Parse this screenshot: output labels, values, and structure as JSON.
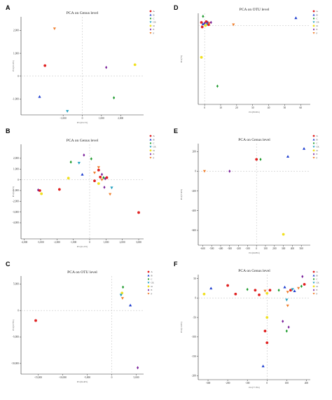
{
  "colors": {
    "red": "#e02020",
    "blue": "#1f3fd0",
    "green": "#1a9a2a",
    "purple": "#7a1f9a",
    "yellow": "#f0e020",
    "orange": "#f08030",
    "cyan": "#20a0c0",
    "grid": "#bdbdbd",
    "axis": "#333333"
  },
  "panels": [
    {
      "letter": "A",
      "title": "PCA on Genus level",
      "xlabel": "PC1(43.15%)",
      "ylabel": "PC2(25.19%)",
      "legend": [
        {
          "label": "A",
          "color": "#e02020",
          "shape": "circle"
        },
        {
          "label": "B",
          "color": "#1f3fd0",
          "shape": "triangle-up"
        },
        {
          "label": "C",
          "color": "#1a9a2a",
          "shape": "diamond"
        },
        {
          "label": "CK",
          "color": "#20a0c0",
          "shape": "triangle-down"
        },
        {
          "label": "D",
          "color": "#f0e020",
          "shape": "circle"
        },
        {
          "label": "E",
          "color": "#7a1f9a",
          "shape": "diamond"
        },
        {
          "label": "F",
          "color": "#f08030",
          "shape": "triangle-down"
        }
      ]
    },
    {
      "letter": "B",
      "title": "PCA on Genus level",
      "xlabel": "PC1(41.22%)",
      "ylabel": "PC2(22.10%)",
      "legend": [
        {
          "label": "A",
          "color": "#e02020",
          "shape": "circle"
        },
        {
          "label": "B",
          "color": "#1f3fd0",
          "shape": "triangle-up"
        },
        {
          "label": "C",
          "color": "#1a9a2a",
          "shape": "diamond"
        },
        {
          "label": "CK",
          "color": "#20a0c0",
          "shape": "triangle-down"
        },
        {
          "label": "D",
          "color": "#f0e020",
          "shape": "circle"
        },
        {
          "label": "E",
          "color": "#7a1f9a",
          "shape": "diamond"
        },
        {
          "label": "F",
          "color": "#f08030",
          "shape": "triangle-down"
        }
      ]
    },
    {
      "letter": "C",
      "title": "PCA on OTU level",
      "xlabel": "PC1(64.46%)",
      "ylabel": "PC2(18.78%)",
      "legend": [
        {
          "label": "A",
          "color": "#e02020",
          "shape": "circle"
        },
        {
          "label": "B",
          "color": "#1f3fd0",
          "shape": "triangle-up"
        },
        {
          "label": "C",
          "color": "#1a9a2a",
          "shape": "diamond"
        },
        {
          "label": "CK",
          "color": "#20a0c0",
          "shape": "triangle-down"
        },
        {
          "label": "D",
          "color": "#f0e020",
          "shape": "circle"
        },
        {
          "label": "E",
          "color": "#7a1f9a",
          "shape": "diamond"
        },
        {
          "label": "F",
          "color": "#f08030",
          "shape": "triangle-down"
        }
      ]
    },
    {
      "letter": "D",
      "title": "PCA on OTU level",
      "xlabel": "PC1(85.96%)",
      "ylabel": "PC2(7%)",
      "legend": [
        {
          "label": "A",
          "color": "#e02020",
          "shape": "circle"
        },
        {
          "label": "B",
          "color": "#1f3fd0",
          "shape": "triangle-up"
        },
        {
          "label": "C",
          "color": "#1a9a2a",
          "shape": "diamond"
        },
        {
          "label": "CK",
          "color": "#20a0c0",
          "shape": "triangle-down"
        },
        {
          "label": "D",
          "color": "#f0e020",
          "shape": "circle"
        },
        {
          "label": "E",
          "color": "#7a1f9a",
          "shape": "diamond"
        },
        {
          "label": "F",
          "color": "#f08030",
          "shape": "triangle-down"
        }
      ]
    },
    {
      "letter": "E",
      "title": "PCA on Genus level",
      "xlabel": "PC1(62.86%)",
      "ylabel": "PC2(27.40%)",
      "legend": [
        {
          "label": "A",
          "color": "#e02020",
          "shape": "circle"
        },
        {
          "label": "B",
          "color": "#1f3fd0",
          "shape": "triangle-up"
        },
        {
          "label": "C",
          "color": "#1a9a2a",
          "shape": "diamond"
        },
        {
          "label": "CK",
          "color": "#20a0c0",
          "shape": "triangle-down"
        },
        {
          "label": "D",
          "color": "#f0e020",
          "shape": "circle"
        },
        {
          "label": "E",
          "color": "#7a1f9a",
          "shape": "diamond"
        },
        {
          "label": "F",
          "color": "#f08030",
          "shape": "triangle-down"
        }
      ]
    },
    {
      "letter": "F",
      "title": "PCA on Genus level",
      "xlabel": "PC1(77.78%)",
      "ylabel": "PC2(11.59%)",
      "legend": [
        {
          "label": "A",
          "color": "#e02020",
          "shape": "circle"
        },
        {
          "label": "B",
          "color": "#1f3fd0",
          "shape": "triangle-up"
        },
        {
          "label": "C",
          "color": "#1a9a2a",
          "shape": "diamond"
        },
        {
          "label": "CK",
          "color": "#20a0c0",
          "shape": "triangle-down"
        },
        {
          "label": "D",
          "color": "#f0e020",
          "shape": "circle"
        },
        {
          "label": "E",
          "color": "#7a1f9a",
          "shape": "diamond"
        },
        {
          "label": "F",
          "color": "#f08030",
          "shape": "triangle-down"
        }
      ]
    }
  ],
  "chart_data": [
    {
      "panel": "A",
      "type": "scatter",
      "title": "PCA on Genus level",
      "xlabel": "PC1(43.15%)",
      "ylabel": "PC2(25.19%)",
      "xlim": [
        -3200,
        3200
      ],
      "ylim": [
        -1700,
        2600
      ],
      "xticks": [
        -1000,
        0,
        1000,
        2000
      ],
      "xticklabels": [
        "-1,000",
        "0",
        "1,000",
        "2,000"
      ],
      "yticks": [
        -1000,
        0,
        1000,
        2000
      ],
      "yticklabels": [
        "-1,000",
        "0",
        "1,000",
        "2,000"
      ],
      "grid": "dashed zero lines",
      "legend_position": "right",
      "points": [
        {
          "group": "A",
          "x": -1950,
          "y": 460
        },
        {
          "group": "B",
          "x": -2230,
          "y": -900
        },
        {
          "group": "CK",
          "x": -780,
          "y": -1540
        },
        {
          "group": "F",
          "x": -1450,
          "y": 2080
        },
        {
          "group": "C",
          "x": 1650,
          "y": -950
        },
        {
          "group": "E",
          "x": 1250,
          "y": 380
        },
        {
          "group": "D",
          "x": 2750,
          "y": 500
        }
      ]
    },
    {
      "panel": "B",
      "type": "scatter",
      "title": "PCA on Genus level",
      "xlabel": "PC1(41.22%)",
      "ylabel": "PC2(22.10%)",
      "xlim": [
        -4200,
        3300
      ],
      "ylim": [
        -5500,
        3300
      ],
      "xticks": [
        -4000,
        -3000,
        -2000,
        -1000,
        0,
        1000,
        2000,
        3000
      ],
      "xticklabels": [
        "-4,000",
        "-3,000",
        "-2,000",
        "-1,000",
        "0",
        "1,000",
        "2,000",
        "3,000"
      ],
      "yticks": [
        -4000,
        -3000,
        -2000,
        -1000,
        0,
        1000,
        2000
      ],
      "yticklabels": [
        "-4,000",
        "-3,000",
        "-2,000",
        "-1,000",
        "0",
        "1,000",
        "2,000"
      ],
      "grid": "dashed zero lines",
      "legend_position": "right",
      "points": [
        {
          "group": "E",
          "x": -350,
          "y": 2300
        },
        {
          "group": "C",
          "x": 100,
          "y": 1950
        },
        {
          "group": "C",
          "x": -1150,
          "y": 1650
        },
        {
          "group": "CK",
          "x": -650,
          "y": 1550
        },
        {
          "group": "F",
          "x": 550,
          "y": 1150
        },
        {
          "group": "A",
          "x": 550,
          "y": 900
        },
        {
          "group": "B",
          "x": -450,
          "y": 500
        },
        {
          "group": "D",
          "x": -1300,
          "y": 150
        },
        {
          "group": "E",
          "x": 750,
          "y": 500
        },
        {
          "group": "F",
          "x": 300,
          "y": 650
        },
        {
          "group": "A",
          "x": 650,
          "y": 250
        },
        {
          "group": "C",
          "x": 850,
          "y": 200
        },
        {
          "group": "A",
          "x": 1050,
          "y": 200
        },
        {
          "group": "E",
          "x": 950,
          "y": 100
        },
        {
          "group": "F",
          "x": 750,
          "y": 0
        },
        {
          "group": "A",
          "x": 300,
          "y": -100
        },
        {
          "group": "D",
          "x": 550,
          "y": -350
        },
        {
          "group": "E",
          "x": 900,
          "y": -700
        },
        {
          "group": "CK",
          "x": 1350,
          "y": -750
        },
        {
          "group": "A",
          "x": -1850,
          "y": -900
        },
        {
          "group": "E",
          "x": -3150,
          "y": -950
        },
        {
          "group": "A",
          "x": -3050,
          "y": -1000
        },
        {
          "group": "D",
          "x": -2950,
          "y": -1300
        },
        {
          "group": "F",
          "x": 1250,
          "y": -1350
        },
        {
          "group": "A",
          "x": 3000,
          "y": -3050
        }
      ]
    },
    {
      "panel": "C",
      "type": "scatter",
      "title": "PCA on OTU level",
      "xlabel": "PC1(64.46%)",
      "ylabel": "PC2(18.78%)",
      "xlim": [
        -18500,
        6500
      ],
      "ylim": [
        -12000,
        6500
      ],
      "xticks": [
        -15000,
        -10000,
        -5000,
        0,
        5000
      ],
      "xticklabels": [
        "-15,000",
        "-10,000",
        "-5,000",
        "0",
        "5,000"
      ],
      "yticks": [
        -10000,
        -5000,
        0,
        5000
      ],
      "yticklabels": [
        "-10,000",
        "-5,000",
        "0",
        "5,000"
      ],
      "grid": "dashed zero lines",
      "legend_position": "right",
      "points": [
        {
          "group": "C",
          "x": 2300,
          "y": 4400
        },
        {
          "group": "D",
          "x": 2100,
          "y": 3300
        },
        {
          "group": "CK",
          "x": 1900,
          "y": 2900
        },
        {
          "group": "F",
          "x": 2200,
          "y": 2300
        },
        {
          "group": "A",
          "x": -15500,
          "y": -1900
        },
        {
          "group": "B",
          "x": 3800,
          "y": 1000
        },
        {
          "group": "E",
          "x": 5300,
          "y": -10800
        }
      ]
    },
    {
      "panel": "D",
      "type": "scatter",
      "title": "PCA on OTU level",
      "xlabel": "PC1(85.96%)",
      "ylabel": "PC2(7%)",
      "xlim": [
        -4,
        66
      ],
      "ylim": [
        -52,
        8
      ],
      "xticks": [
        0,
        10,
        20,
        30,
        40,
        50,
        60
      ],
      "xticklabels": [
        "0",
        "10",
        "20",
        "30",
        "40",
        "50",
        "60"
      ],
      "yticks": [],
      "yticklabels": [],
      "grid": "dashed zero lines",
      "legend_position": "right",
      "points": [
        {
          "group": "C",
          "x": -1,
          "y": 6
        },
        {
          "group": "A",
          "x": -2,
          "y": 2
        },
        {
          "group": "B",
          "x": -1,
          "y": 1
        },
        {
          "group": "E",
          "x": 0,
          "y": 1.5
        },
        {
          "group": "A",
          "x": 1,
          "y": 2.5
        },
        {
          "group": "CK",
          "x": 1.5,
          "y": 1
        },
        {
          "group": "E",
          "x": 2,
          "y": 2
        },
        {
          "group": "D",
          "x": 0.5,
          "y": 0
        },
        {
          "group": "A",
          "x": 2.5,
          "y": 0.5
        },
        {
          "group": "F",
          "x": 3,
          "y": 1.5
        },
        {
          "group": "E",
          "x": 4,
          "y": 2
        },
        {
          "group": "A",
          "x": -1.5,
          "y": -1
        },
        {
          "group": "F",
          "x": 18,
          "y": 0.5
        },
        {
          "group": "B",
          "x": 57,
          "y": 5
        },
        {
          "group": "D",
          "x": -2,
          "y": -21
        },
        {
          "group": "C",
          "x": 8,
          "y": -40
        }
      ]
    },
    {
      "panel": "E",
      "type": "scatter",
      "title": "PCA on Genus level",
      "xlabel": "PC1(62.86%)",
      "ylabel": "PC2(27.40%)",
      "xlim": [
        -650,
        600
      ],
      "ylim": [
        -750,
        280
      ],
      "xticks": [
        -600,
        -500,
        -400,
        -300,
        -200,
        -100,
        0,
        100,
        200,
        300,
        400,
        500
      ],
      "xticklabels": [
        "-600",
        "-500",
        "-400",
        "-300",
        "-200",
        "-100",
        "0",
        "100",
        "200",
        "300",
        "400",
        "500"
      ],
      "yticks": [
        -600,
        -400,
        -200,
        0,
        200
      ],
      "yticklabels": [
        "-600",
        "-400",
        "-200",
        "0",
        "200"
      ],
      "grid": "dashed zero lines",
      "legend_position": "right",
      "points": [
        {
          "group": "B",
          "x": 530,
          "y": 230
        },
        {
          "group": "B",
          "x": 350,
          "y": 150
        },
        {
          "group": "A",
          "x": 0,
          "y": 120
        },
        {
          "group": "C",
          "x": 45,
          "y": 120
        },
        {
          "group": "F",
          "x": -580,
          "y": 0
        },
        {
          "group": "E",
          "x": -300,
          "y": 0
        },
        {
          "group": "D",
          "x": 300,
          "y": -640
        }
      ]
    },
    {
      "panel": "F",
      "type": "scatter",
      "title": "PCA on Genus level",
      "xlabel": "PC1(77.78%)",
      "ylabel": "PC2(11.59%)",
      "xlim": [
        -350,
        220
      ],
      "ylim": [
        -210,
        60
      ],
      "xticks": [
        -300,
        -200,
        -100,
        0,
        100,
        200
      ],
      "xticklabels": [
        "-300",
        "-200",
        "-100",
        "0",
        "100",
        "200"
      ],
      "yticks": [
        -200,
        -150,
        -100,
        -50,
        0,
        50
      ],
      "yticklabels": [
        "-200",
        "-150",
        "-100",
        "-50",
        "0",
        "50"
      ],
      "grid": "dashed zero lines",
      "legend_position": "right",
      "points": [
        {
          "group": "D",
          "x": -320,
          "y": 10
        },
        {
          "group": "B",
          "x": -285,
          "y": 25
        },
        {
          "group": "A",
          "x": -200,
          "y": 32
        },
        {
          "group": "A",
          "x": -160,
          "y": 10
        },
        {
          "group": "C",
          "x": -100,
          "y": 22
        },
        {
          "group": "A",
          "x": -60,
          "y": 20
        },
        {
          "group": "A",
          "x": -40,
          "y": 8
        },
        {
          "group": "F",
          "x": -10,
          "y": 18
        },
        {
          "group": "D",
          "x": 0,
          "y": 12
        },
        {
          "group": "A",
          "x": 15,
          "y": 20
        },
        {
          "group": "C",
          "x": 60,
          "y": 20
        },
        {
          "group": "B",
          "x": 90,
          "y": 28
        },
        {
          "group": "F",
          "x": 105,
          "y": 15
        },
        {
          "group": "A",
          "x": 120,
          "y": 20
        },
        {
          "group": "CK",
          "x": 130,
          "y": 22
        },
        {
          "group": "B",
          "x": 140,
          "y": 18
        },
        {
          "group": "F",
          "x": 160,
          "y": 25
        },
        {
          "group": "C",
          "x": 175,
          "y": 30
        },
        {
          "group": "E",
          "x": 180,
          "y": 55
        },
        {
          "group": "A",
          "x": 190,
          "y": 35
        },
        {
          "group": "CK",
          "x": 100,
          "y": -5
        },
        {
          "group": "F",
          "x": 105,
          "y": -20
        },
        {
          "group": "E",
          "x": 80,
          "y": -60
        },
        {
          "group": "C",
          "x": 100,
          "y": -85
        },
        {
          "group": "E",
          "x": 110,
          "y": -75
        },
        {
          "group": "A",
          "x": 0,
          "y": -115
        },
        {
          "group": "D",
          "x": 0,
          "y": -50
        },
        {
          "group": "A",
          "x": -10,
          "y": -85
        },
        {
          "group": "B",
          "x": -20,
          "y": -175
        }
      ]
    }
  ]
}
